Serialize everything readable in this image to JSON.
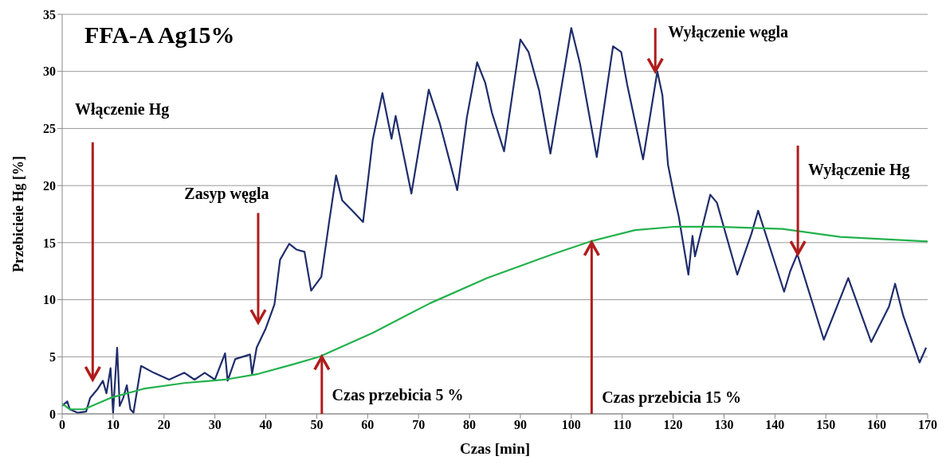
{
  "chart_data": {
    "type": "line",
    "title": "FFA-A Ag15%",
    "xlabel": "Czas [min]",
    "ylabel": "Przebicieie Hg [%]",
    "xlim": [
      0,
      170
    ],
    "xticks": [
      0,
      10,
      20,
      30,
      40,
      50,
      60,
      70,
      80,
      90,
      100,
      110,
      120,
      130,
      140,
      150,
      160,
      170
    ],
    "ylim": [
      0,
      35
    ],
    "yticks": [
      0,
      5,
      10,
      15,
      20,
      25,
      30,
      35
    ],
    "grid": "y",
    "marker": "none",
    "line_style": "solid",
    "series": [
      {
        "color": "#1f2d6b",
        "x": [
          0,
          1,
          1.5,
          3,
          4.7,
          5.5,
          7,
          8,
          8.7,
          9.5,
          10,
          10.8,
          11.3,
          12,
          12.7,
          13.4,
          14,
          15.5,
          18,
          21,
          24,
          26,
          28,
          30,
          32,
          32.5,
          34,
          36.9,
          37.3,
          38.2,
          40,
          41.7,
          42.8,
          44.6,
          46,
          47.6,
          48.9,
          50.9,
          52.5,
          53.8,
          55,
          57,
          59.1,
          61,
          62.9,
          64.7,
          65.5,
          68.6,
          72,
          74.2,
          77.6,
          79.5,
          81.5,
          83.1,
          84.4,
          86.8,
          90,
          91.6,
          93.7,
          95.9,
          100,
          101.7,
          105,
          108.2,
          109.8,
          111,
          114.1,
          116.9,
          117.9,
          119,
          120.3,
          121.1,
          123,
          123.8,
          124.3,
          127.3,
          128.6,
          132.6,
          135.4,
          136.7,
          141.8,
          143,
          144.4,
          149.6,
          154.4,
          158.9,
          162.4,
          163.6,
          165.2,
          168.4,
          169.7
        ],
        "values": [
          0.7,
          1.1,
          0.4,
          0.1,
          0.2,
          1.4,
          2.2,
          2.9,
          1.8,
          4,
          0.1,
          5.8,
          0.7,
          1.4,
          2.5,
          0.4,
          0.1,
          4.2,
          3.6,
          3,
          3.6,
          3,
          3.6,
          3,
          5.3,
          2.9,
          4.8,
          5.2,
          3.5,
          5.8,
          7.5,
          9.6,
          13.5,
          14.9,
          14.4,
          14.2,
          10.8,
          12,
          17,
          20.9,
          18.7,
          17.8,
          16.8,
          24,
          28.1,
          24.1,
          26.1,
          19.3,
          28.4,
          25.4,
          19.6,
          26,
          30.8,
          29,
          26.4,
          23,
          32.8,
          31.7,
          28.3,
          22.8,
          33.8,
          30.7,
          22.5,
          32.2,
          31.7,
          28.8,
          22.3,
          30,
          27.9,
          21.8,
          18.9,
          17.3,
          12.2,
          15.6,
          13.8,
          19.2,
          18.5,
          12.2,
          15.8,
          17.8,
          10.7,
          12.5,
          14,
          6.5,
          11.9,
          6.3,
          9.4,
          11.4,
          8.6,
          4.5,
          5.8
        ]
      },
      {
        "color": "#22b14c",
        "x": [
          0,
          1.5,
          4.3,
          9.5,
          16,
          24,
          32,
          38.5,
          45,
          50.5,
          61,
          72.3,
          83.5,
          96.4,
          103.7,
          112.5,
          120.6,
          128.6,
          141.5,
          152.8,
          170
        ],
        "values": [
          0.9,
          0.4,
          0.4,
          1.4,
          2.2,
          2.7,
          3,
          3.5,
          4.3,
          5,
          7.1,
          9.7,
          11.9,
          14,
          15.1,
          16.1,
          16.4,
          16.4,
          16.2,
          15.5,
          15.1
        ]
      }
    ],
    "annotations": [
      "Włączenie Hg",
      "Zasyp węgla",
      {
        "text": "Wyłączenie węgla",
        "x": 116.5,
        "y": 30
      },
      {
        "text": "Wyłączenie Hg",
        "x": 144.5,
        "y": 14
      },
      {
        "text": "Czas przebicia 5 %",
        "x": 51,
        "y": 5
      },
      {
        "text": "Czas przebicia 15 %",
        "x": 104,
        "y": 15
      }
    ]
  }
}
